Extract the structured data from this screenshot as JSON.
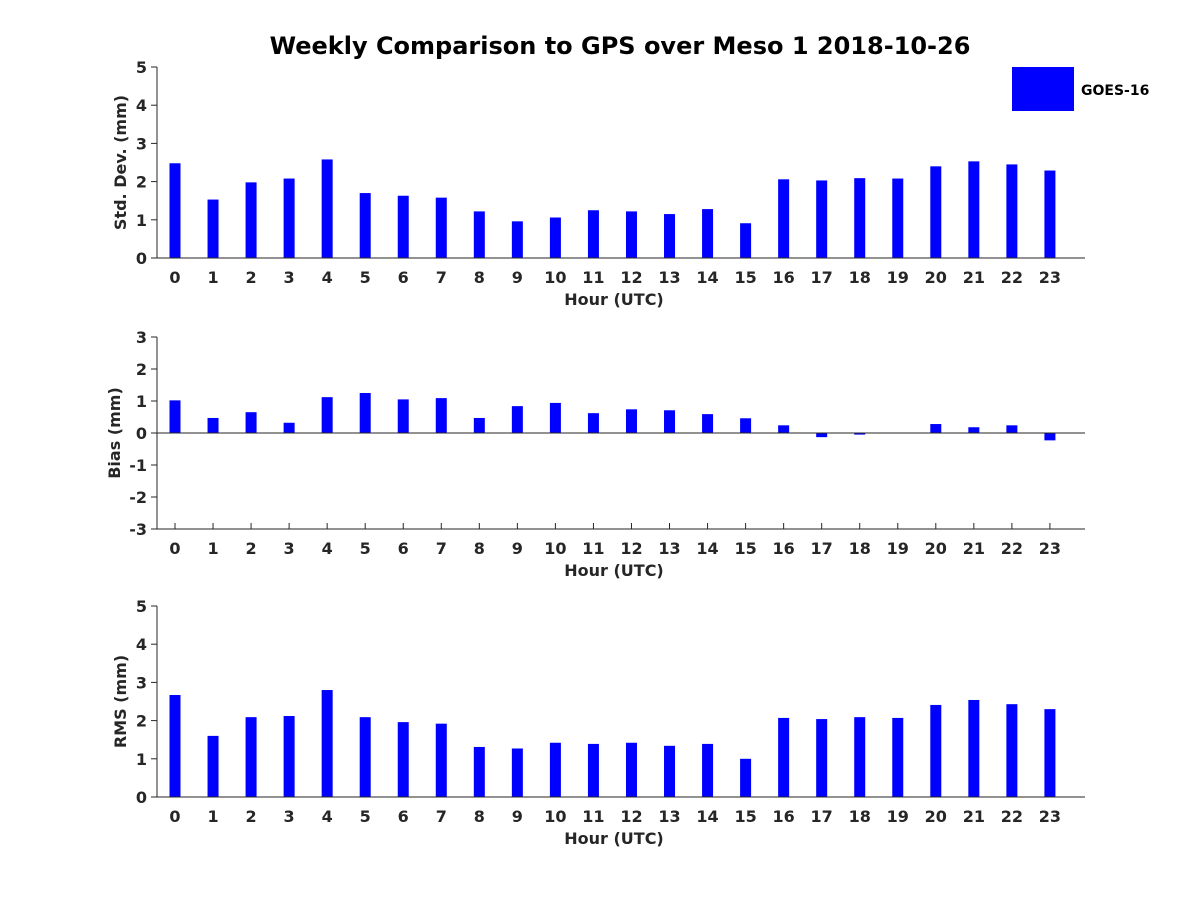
{
  "figure": {
    "title": "Weekly Comparison to GPS over Meso 1 2018-10-26",
    "legend": {
      "label": "GOES-16",
      "color": "#0000ff",
      "placement": "top-right"
    }
  },
  "chart_data": [
    {
      "type": "bar",
      "title": "Weekly Comparison to GPS over Meso 1 2018-10-26",
      "xlabel": "Hour (UTC)",
      "ylabel": "Std. Dev. (mm)",
      "ylim": [
        0,
        5
      ],
      "yticks": [
        "0",
        "1",
        "2",
        "3",
        "4",
        "5"
      ],
      "categories": [
        "0",
        "1",
        "2",
        "3",
        "4",
        "5",
        "6",
        "7",
        "8",
        "9",
        "10",
        "11",
        "12",
        "13",
        "14",
        "15",
        "16",
        "17",
        "18",
        "19",
        "20",
        "21",
        "22",
        "23"
      ],
      "series": [
        {
          "name": "GOES-16",
          "color": "#0000ff",
          "values": [
            2.48,
            1.53,
            1.98,
            2.08,
            2.58,
            1.7,
            1.63,
            1.58,
            1.22,
            0.96,
            1.06,
            1.25,
            1.22,
            1.15,
            1.28,
            0.91,
            2.06,
            2.03,
            2.09,
            2.08,
            2.4,
            2.53,
            2.45,
            2.29
          ]
        }
      ]
    },
    {
      "type": "bar",
      "xlabel": "Hour (UTC)",
      "ylabel": "Bias (mm)",
      "ylim": [
        -3,
        3
      ],
      "yticks": [
        "-3",
        "-2",
        "-1",
        "0",
        "1",
        "2",
        "3"
      ],
      "categories": [
        "0",
        "1",
        "2",
        "3",
        "4",
        "5",
        "6",
        "7",
        "8",
        "9",
        "10",
        "11",
        "12",
        "13",
        "14",
        "15",
        "16",
        "17",
        "18",
        "19",
        "20",
        "21",
        "22",
        "23"
      ],
      "series": [
        {
          "name": "GOES-16",
          "color": "#0000ff",
          "values": [
            1.02,
            0.47,
            0.65,
            0.32,
            1.12,
            1.25,
            1.05,
            1.09,
            0.47,
            0.84,
            0.94,
            0.62,
            0.74,
            0.71,
            0.59,
            0.46,
            0.24,
            -0.13,
            -0.05,
            0.0,
            0.28,
            0.18,
            0.24,
            -0.23
          ]
        }
      ]
    },
    {
      "type": "bar",
      "xlabel": "Hour (UTC)",
      "ylabel": "RMS (mm)",
      "ylim": [
        0,
        5
      ],
      "yticks": [
        "0",
        "1",
        "2",
        "3",
        "4",
        "5"
      ],
      "categories": [
        "0",
        "1",
        "2",
        "3",
        "4",
        "5",
        "6",
        "7",
        "8",
        "9",
        "10",
        "11",
        "12",
        "13",
        "14",
        "15",
        "16",
        "17",
        "18",
        "19",
        "20",
        "21",
        "22",
        "23"
      ],
      "series": [
        {
          "name": "GOES-16",
          "color": "#0000ff",
          "values": [
            2.67,
            1.6,
            2.09,
            2.12,
            2.8,
            2.09,
            1.96,
            1.92,
            1.31,
            1.27,
            1.42,
            1.39,
            1.42,
            1.34,
            1.39,
            1.0,
            2.07,
            2.04,
            2.09,
            2.07,
            2.41,
            2.54,
            2.43,
            2.3
          ]
        }
      ]
    }
  ]
}
